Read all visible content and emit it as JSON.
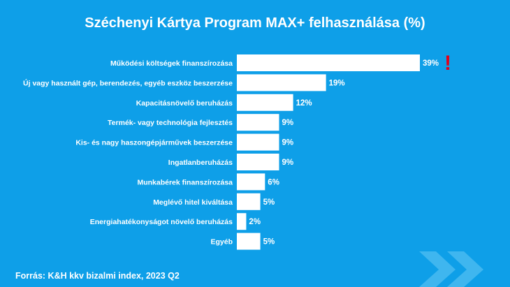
{
  "chart_data": {
    "type": "bar",
    "orientation": "horizontal",
    "title": "Széchenyi Kártya Program MAX+ felhasználása (%)",
    "categories": [
      "Működési költségek finanszírozása",
      "Új vagy használt gép, berendezés, egyéb eszköz beszerzése",
      "Kapacitásnövelő beruházás",
      "Termék- vagy technológia fejlesztés",
      "Kis- és nagy haszongépjárművek beszerzése",
      "Ingatlanberuházás",
      "Munkabérek finanszírozása",
      "Meglévő hitel kiváltása",
      "Energiahatékonyságot növelő beruházás",
      "Egyéb"
    ],
    "values": [
      39,
      19,
      12,
      9,
      9,
      9,
      6,
      5,
      2,
      5
    ],
    "value_labels": [
      "39%",
      "19%",
      "12%",
      "9%",
      "9%",
      "9%",
      "6%",
      "5%",
      "2%",
      "5%"
    ],
    "xlim": [
      0,
      39
    ],
    "grid": false,
    "bar_color": "#ffffff"
  },
  "highlight": {
    "symbol": "!",
    "color": "#e3001b"
  },
  "footer": {
    "source": "Forrás: K&H kkv bizalmi index, 2023 Q2"
  },
  "colors": {
    "background": "#0e9fe8",
    "decor": "#3fb6ef"
  }
}
